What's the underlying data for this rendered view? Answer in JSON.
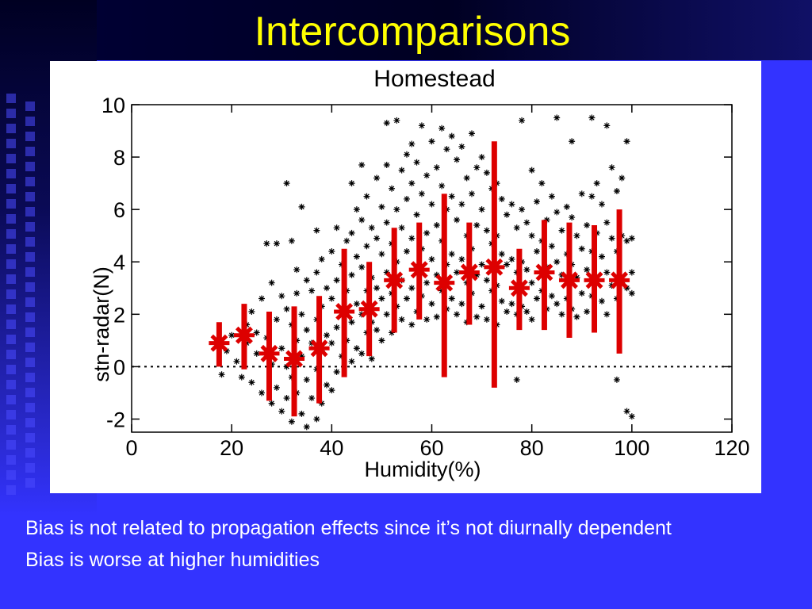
{
  "slide": {
    "title": "Intercomparisons",
    "notes": [
      "Bias is not related to propagation effects since it’s not diurnally dependent",
      "Bias is worse at higher humidities"
    ]
  },
  "colors": {
    "background": "#3333ff",
    "title": "#ffff00",
    "scatter": "#000000",
    "bins": "#dd0000"
  },
  "chart_data": {
    "type": "scatter",
    "title": "Homestead",
    "xlabel": "Humidity(%)",
    "ylabel": "stn-radar(N)",
    "xlim": [
      0,
      120
    ],
    "ylim": [
      -2.5,
      10
    ],
    "xticks": [
      0,
      20,
      40,
      60,
      80,
      100,
      120
    ],
    "yticks": [
      -2,
      0,
      2,
      4,
      6,
      8,
      10
    ],
    "reference_line": {
      "y": 0,
      "style": "dotted"
    },
    "grid": false,
    "series": [
      {
        "name": "",
        "kind": "binned-mean-with-range",
        "points": [
          {
            "x": 17.5,
            "y": 0.9,
            "low": 0.0,
            "high": 1.7
          },
          {
            "x": 22.5,
            "y": 1.2,
            "low": -0.1,
            "high": 2.4
          },
          {
            "x": 27.5,
            "y": 0.5,
            "low": -1.3,
            "high": 2.1
          },
          {
            "x": 32.5,
            "y": 0.3,
            "low": -1.9,
            "high": 2.3
          },
          {
            "x": 37.5,
            "y": 0.7,
            "low": -1.4,
            "high": 2.7
          },
          {
            "x": 42.5,
            "y": 2.1,
            "low": -0.4,
            "high": 4.5
          },
          {
            "x": 47.5,
            "y": 2.2,
            "low": 0.4,
            "high": 4.0
          },
          {
            "x": 52.5,
            "y": 3.3,
            "low": 1.3,
            "high": 5.3
          },
          {
            "x": 57.5,
            "y": 3.7,
            "low": 1.8,
            "high": 5.5
          },
          {
            "x": 62.5,
            "y": 3.2,
            "low": -0.4,
            "high": 6.6
          },
          {
            "x": 67.5,
            "y": 3.6,
            "low": 1.6,
            "high": 5.5
          },
          {
            "x": 72.5,
            "y": 3.8,
            "low": -0.8,
            "high": 8.6
          },
          {
            "x": 77.5,
            "y": 3.0,
            "low": 1.4,
            "high": 4.5
          },
          {
            "x": 82.5,
            "y": 3.6,
            "low": 1.4,
            "high": 5.6
          },
          {
            "x": 87.5,
            "y": 3.3,
            "low": 1.1,
            "high": 5.5
          },
          {
            "x": 92.5,
            "y": 3.3,
            "low": 1.3,
            "high": 5.4
          },
          {
            "x": 97.5,
            "y": 3.3,
            "low": 0.5,
            "high": 6.0
          }
        ]
      },
      {
        "name": "",
        "kind": "observations",
        "points": [
          [
            18,
            -0.3
          ],
          [
            19,
            0.6
          ],
          [
            20,
            1.2
          ],
          [
            21,
            0.2
          ],
          [
            22,
            -0.4
          ],
          [
            23,
            1.6
          ],
          [
            23,
            0.9
          ],
          [
            24,
            2.1
          ],
          [
            24,
            -0.6
          ],
          [
            25,
            1.3
          ],
          [
            25,
            0.5
          ],
          [
            26,
            2.6
          ],
          [
            26,
            -1.0
          ],
          [
            27,
            4.7
          ],
          [
            27,
            1.1
          ],
          [
            28,
            3.2
          ],
          [
            28,
            0.1
          ],
          [
            28,
            -1.4
          ],
          [
            29,
            4.7
          ],
          [
            29,
            1.8
          ],
          [
            29,
            -0.8
          ],
          [
            30,
            2.7
          ],
          [
            30,
            0.7
          ],
          [
            30,
            -1.7
          ],
          [
            31,
            7.0
          ],
          [
            31,
            2.2
          ],
          [
            31,
            0.0
          ],
          [
            31,
            -1.2
          ],
          [
            32,
            4.8
          ],
          [
            32,
            1.6
          ],
          [
            32,
            -0.4
          ],
          [
            32,
            -2.1
          ],
          [
            33,
            3.7
          ],
          [
            33,
            2.8
          ],
          [
            33,
            1.0
          ],
          [
            33,
            -1.0
          ],
          [
            34,
            6.1
          ],
          [
            34,
            2.0
          ],
          [
            34,
            0.4
          ],
          [
            34,
            -1.8
          ],
          [
            35,
            3.3
          ],
          [
            35,
            1.4
          ],
          [
            35,
            -0.5
          ],
          [
            35,
            -2.3
          ],
          [
            36,
            2.9
          ],
          [
            36,
            0.9
          ],
          [
            36,
            -1.2
          ],
          [
            37,
            5.2
          ],
          [
            37,
            3.6
          ],
          [
            37,
            1.8
          ],
          [
            37,
            -0.1
          ],
          [
            37,
            -2.0
          ],
          [
            38,
            4.1
          ],
          [
            38,
            2.3
          ],
          [
            38,
            0.6
          ],
          [
            38,
            -1.4
          ],
          [
            39,
            3.0
          ],
          [
            39,
            1.2
          ],
          [
            39,
            -0.7
          ],
          [
            40,
            4.4
          ],
          [
            40,
            2.6
          ],
          [
            40,
            0.9
          ],
          [
            40,
            -0.9
          ],
          [
            41,
            5.3
          ],
          [
            41,
            3.3
          ],
          [
            41,
            1.5
          ],
          [
            41,
            -0.2
          ],
          [
            42,
            3.9
          ],
          [
            42,
            2.1
          ],
          [
            42,
            0.4
          ],
          [
            43,
            4.8
          ],
          [
            43,
            2.9
          ],
          [
            43,
            1.0
          ],
          [
            44,
            7.0
          ],
          [
            44,
            5.1
          ],
          [
            44,
            3.5
          ],
          [
            44,
            1.7
          ],
          [
            44,
            0.2
          ],
          [
            45,
            6.0
          ],
          [
            45,
            4.2
          ],
          [
            45,
            2.4
          ],
          [
            45,
            0.7
          ],
          [
            46,
            7.7
          ],
          [
            46,
            5.6
          ],
          [
            46,
            3.8
          ],
          [
            46,
            2.0
          ],
          [
            46,
            0.5
          ],
          [
            47,
            6.5
          ],
          [
            47,
            4.6
          ],
          [
            47,
            2.9
          ],
          [
            47,
            1.3
          ],
          [
            48,
            5.3
          ],
          [
            48,
            3.4
          ],
          [
            48,
            1.7
          ],
          [
            48,
            0.3
          ],
          [
            49,
            7.2
          ],
          [
            49,
            4.9
          ],
          [
            49,
            3.0
          ],
          [
            49,
            1.4
          ],
          [
            50,
            6.1
          ],
          [
            50,
            4.3
          ],
          [
            50,
            2.6
          ],
          [
            50,
            1.0
          ],
          [
            51,
            9.3
          ],
          [
            51,
            7.7
          ],
          [
            51,
            5.5
          ],
          [
            51,
            3.6
          ],
          [
            51,
            2.0
          ],
          [
            52,
            6.8
          ],
          [
            52,
            4.7
          ],
          [
            52,
            2.8
          ],
          [
            52,
            1.3
          ],
          [
            53,
            9.4
          ],
          [
            53,
            6.0
          ],
          [
            53,
            4.0
          ],
          [
            53,
            2.3
          ],
          [
            54,
            7.5
          ],
          [
            54,
            5.3
          ],
          [
            54,
            3.3
          ],
          [
            54,
            1.8
          ],
          [
            55,
            8.1
          ],
          [
            55,
            6.4
          ],
          [
            55,
            4.4
          ],
          [
            55,
            2.6
          ],
          [
            56,
            8.5
          ],
          [
            56,
            7.0
          ],
          [
            56,
            4.9
          ],
          [
            56,
            3.0
          ],
          [
            56,
            1.6
          ],
          [
            57,
            7.8
          ],
          [
            57,
            5.8
          ],
          [
            57,
            3.8
          ],
          [
            57,
            2.1
          ],
          [
            58,
            9.2
          ],
          [
            58,
            6.6
          ],
          [
            58,
            4.5
          ],
          [
            58,
            2.7
          ],
          [
            59,
            7.3
          ],
          [
            59,
            5.1
          ],
          [
            59,
            3.2
          ],
          [
            59,
            1.8
          ],
          [
            60,
            8.6
          ],
          [
            60,
            6.2
          ],
          [
            60,
            4.1
          ],
          [
            60,
            2.4
          ],
          [
            61,
            7.6
          ],
          [
            61,
            5.4
          ],
          [
            61,
            3.5
          ],
          [
            61,
            1.9
          ],
          [
            62,
            9.1
          ],
          [
            62,
            6.9
          ],
          [
            62,
            4.8
          ],
          [
            62,
            2.9
          ],
          [
            63,
            8.3
          ],
          [
            63,
            6.0
          ],
          [
            63,
            3.9
          ],
          [
            63,
            2.2
          ],
          [
            64,
            8.8
          ],
          [
            64,
            6.5
          ],
          [
            64,
            4.3
          ],
          [
            64,
            2.6
          ],
          [
            65,
            7.9
          ],
          [
            65,
            5.6
          ],
          [
            65,
            3.6
          ],
          [
            65,
            2.0
          ],
          [
            66,
            8.4
          ],
          [
            66,
            6.2
          ],
          [
            66,
            4.1
          ],
          [
            66,
            2.4
          ],
          [
            67,
            7.2
          ],
          [
            67,
            5.0
          ],
          [
            67,
            3.2
          ],
          [
            67,
            1.7
          ],
          [
            68,
            8.9
          ],
          [
            68,
            6.6
          ],
          [
            68,
            4.5
          ],
          [
            68,
            2.8
          ],
          [
            69,
            7.6
          ],
          [
            69,
            5.4
          ],
          [
            69,
            3.5
          ],
          [
            69,
            1.9
          ],
          [
            70,
            8.0
          ],
          [
            70,
            6.0
          ],
          [
            70,
            3.9
          ],
          [
            70,
            2.3
          ],
          [
            71,
            7.4
          ],
          [
            71,
            5.2
          ],
          [
            71,
            3.3
          ],
          [
            71,
            1.8
          ],
          [
            72,
            6.8
          ],
          [
            72,
            4.7
          ],
          [
            72,
            2.9
          ],
          [
            73,
            7.0
          ],
          [
            73,
            5.0
          ],
          [
            73,
            3.1
          ],
          [
            73,
            1.6
          ],
          [
            74,
            6.4
          ],
          [
            74,
            4.3
          ],
          [
            74,
            2.5
          ],
          [
            75,
            5.8
          ],
          [
            75,
            3.9
          ],
          [
            75,
            2.1
          ],
          [
            76,
            6.2
          ],
          [
            76,
            4.1
          ],
          [
            76,
            2.4
          ],
          [
            77,
            -0.5
          ],
          [
            77,
            5.3
          ],
          [
            77,
            3.6
          ],
          [
            77,
            2.0
          ],
          [
            78,
            9.4
          ],
          [
            78,
            6.0
          ],
          [
            78,
            4.0
          ],
          [
            78,
            2.3
          ],
          [
            79,
            5.5
          ],
          [
            79,
            3.7
          ],
          [
            79,
            2.1
          ],
          [
            80,
            7.5
          ],
          [
            80,
            5.0
          ],
          [
            80,
            3.2
          ],
          [
            80,
            1.8
          ],
          [
            81,
            6.3
          ],
          [
            81,
            4.4
          ],
          [
            81,
            2.6
          ],
          [
            82,
            7.0
          ],
          [
            82,
            4.8
          ],
          [
            82,
            2.9
          ],
          [
            83,
            5.6
          ],
          [
            83,
            3.8
          ],
          [
            83,
            2.2
          ],
          [
            84,
            6.5
          ],
          [
            84,
            4.6
          ],
          [
            84,
            2.7
          ],
          [
            85,
            9.5
          ],
          [
            85,
            5.9
          ],
          [
            85,
            4.0
          ],
          [
            85,
            2.4
          ],
          [
            86,
            5.2
          ],
          [
            86,
            3.5
          ],
          [
            86,
            2.0
          ],
          [
            87,
            6.1
          ],
          [
            87,
            4.3
          ],
          [
            87,
            2.6
          ],
          [
            88,
            8.6
          ],
          [
            88,
            5.7
          ],
          [
            88,
            3.9
          ],
          [
            88,
            2.2
          ],
          [
            89,
            5.0
          ],
          [
            89,
            3.4
          ],
          [
            89,
            1.9
          ],
          [
            90,
            6.6
          ],
          [
            90,
            4.5
          ],
          [
            90,
            2.8
          ],
          [
            91,
            5.4
          ],
          [
            91,
            3.7
          ],
          [
            91,
            2.1
          ],
          [
            92,
            9.5
          ],
          [
            92,
            6.5
          ],
          [
            92,
            4.4
          ],
          [
            92,
            2.7
          ],
          [
            93,
            7.0
          ],
          [
            93,
            5.1
          ],
          [
            93,
            3.3
          ],
          [
            94,
            6.2
          ],
          [
            94,
            4.2
          ],
          [
            94,
            2.5
          ],
          [
            95,
            9.2
          ],
          [
            95,
            5.5
          ],
          [
            95,
            3.6
          ],
          [
            95,
            2.0
          ],
          [
            96,
            7.6
          ],
          [
            96,
            4.9
          ],
          [
            96,
            3.1
          ],
          [
            97,
            -0.5
          ],
          [
            97,
            6.7
          ],
          [
            97,
            4.4
          ],
          [
            97,
            2.6
          ],
          [
            98,
            7.2
          ],
          [
            98,
            5.0
          ],
          [
            98,
            3.2
          ],
          [
            99,
            8.6
          ],
          [
            99,
            4.8
          ],
          [
            99,
            3.0
          ],
          [
            99,
            -1.7
          ],
          [
            100,
            4.9
          ],
          [
            100,
            3.6
          ],
          [
            100,
            2.8
          ],
          [
            100,
            -1.9
          ]
        ]
      }
    ]
  }
}
